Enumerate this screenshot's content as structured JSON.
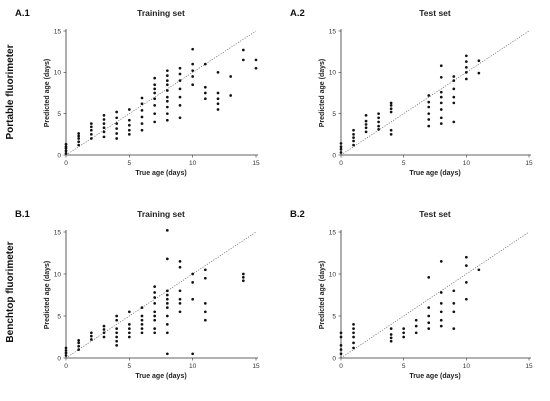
{
  "row_labels": [
    "Portable fluorimeter",
    "Benchtop fluorimeter"
  ],
  "chart_data": [
    {
      "type": "scatter",
      "panel_label": "A.1",
      "title": "Training set",
      "xlabel": "True age (days)",
      "ylabel": "Predicted age (days)",
      "xlim": [
        0,
        15
      ],
      "ylim": [
        0,
        15
      ],
      "xticks": [
        0,
        5,
        10,
        15
      ],
      "yticks": [
        0,
        5,
        10,
        15
      ],
      "reference_line": "y = x",
      "x": [
        0,
        0,
        0,
        0,
        0,
        1,
        1,
        1,
        1,
        1,
        2,
        2,
        2,
        2,
        2,
        3,
        3,
        3,
        3,
        3,
        3,
        4,
        4,
        4,
        4,
        4,
        4,
        5,
        5,
        5,
        5,
        5,
        6,
        6,
        6,
        6,
        6,
        6,
        7,
        7,
        7,
        7,
        7,
        7,
        7,
        7,
        8,
        8,
        8,
        8,
        8,
        8,
        8,
        8,
        8,
        8,
        9,
        9,
        9,
        9,
        9,
        9,
        9,
        10,
        10,
        10,
        10,
        10,
        11,
        11,
        11,
        11,
        12,
        12,
        12,
        12,
        12,
        13,
        13,
        14,
        14,
        15,
        15
      ],
      "y": [
        0.2,
        0.5,
        0.8,
        1.0,
        1.3,
        1.2,
        1.6,
        2.0,
        2.3,
        2.6,
        2.0,
        2.5,
        3.0,
        3.4,
        3.8,
        2.2,
        2.8,
        3.3,
        3.8,
        4.3,
        4.8,
        2.0,
        2.6,
        3.2,
        3.8,
        4.5,
        5.2,
        2.5,
        3.0,
        3.6,
        4.2,
        5.5,
        3.0,
        3.8,
        4.6,
        5.4,
        6.2,
        6.9,
        4.0,
        5.0,
        6.0,
        6.8,
        7.5,
        8.0,
        8.5,
        9.3,
        4.2,
        5.0,
        5.8,
        6.5,
        7.0,
        7.8,
        8.5,
        9.0,
        9.6,
        10.2,
        4.5,
        6.0,
        7.0,
        8.0,
        9.0,
        9.8,
        10.5,
        8.5,
        9.5,
        10.2,
        11.0,
        12.8,
        6.8,
        7.5,
        8.2,
        11.0,
        5.5,
        6.2,
        6.8,
        7.5,
        10.0,
        7.2,
        9.5,
        11.5,
        12.7,
        10.5,
        11.5
      ]
    },
    {
      "type": "scatter",
      "panel_label": "A.2",
      "title": "Test set",
      "xlabel": "True age (days)",
      "ylabel": "Predicted age (days)",
      "xlim": [
        0,
        15
      ],
      "ylim": [
        0,
        15
      ],
      "xticks": [
        0,
        5,
        10,
        15
      ],
      "yticks": [
        0,
        5,
        10,
        15
      ],
      "reference_line": "y = x",
      "x": [
        0,
        0,
        0,
        0,
        1,
        1,
        1,
        1,
        1,
        2,
        2,
        2,
        2,
        2,
        3,
        3,
        3,
        3,
        3,
        4,
        4,
        4,
        4,
        4,
        4,
        7,
        7,
        7,
        7,
        7,
        7,
        8,
        8,
        8,
        8,
        8,
        8,
        8,
        8,
        9,
        9,
        9,
        9,
        9,
        9,
        10,
        10,
        10,
        10,
        10,
        11,
        11
      ],
      "y": [
        0.3,
        0.7,
        1.0,
        1.4,
        1.2,
        1.7,
        2.1,
        2.5,
        3.0,
        2.8,
        3.3,
        3.7,
        4.1,
        4.8,
        3.1,
        3.5,
        4.0,
        4.5,
        5.0,
        2.5,
        3.0,
        5.2,
        5.6,
        6.0,
        6.3,
        3.5,
        4.3,
        5.0,
        5.8,
        6.4,
        7.2,
        3.8,
        4.5,
        5.5,
        6.3,
        7.0,
        7.6,
        9.4,
        10.8,
        4.0,
        6.3,
        7.0,
        8.0,
        9.0,
        9.5,
        9.2,
        10.0,
        10.6,
        11.3,
        12.0,
        9.9,
        11.4
      ]
    },
    {
      "type": "scatter",
      "panel_label": "B.1",
      "title": "Training set",
      "xlabel": "True age (days)",
      "ylabel": "Predicted age (days)",
      "xlim": [
        0,
        15
      ],
      "ylim": [
        0,
        15
      ],
      "xticks": [
        0,
        5,
        10,
        15
      ],
      "yticks": [
        0,
        5,
        10,
        15
      ],
      "reference_line": "y = x",
      "x": [
        0,
        0,
        0,
        0,
        1,
        1,
        1,
        1,
        2,
        2,
        2,
        3,
        3,
        3,
        3,
        4,
        4,
        4,
        4,
        4,
        4,
        4,
        5,
        5,
        5,
        5,
        5,
        6,
        6,
        6,
        6,
        6,
        6,
        7,
        7,
        7,
        7,
        7,
        7,
        7,
        7,
        7,
        8,
        8,
        8,
        8,
        8,
        8,
        8,
        8,
        8,
        8,
        8,
        9,
        9,
        9,
        9,
        9,
        9,
        10,
        10,
        10,
        10,
        11,
        11,
        11,
        11,
        11,
        14,
        14,
        14
      ],
      "y": [
        0.3,
        0.6,
        0.9,
        1.2,
        1.0,
        1.4,
        1.8,
        2.1,
        2.2,
        2.6,
        3.0,
        2.5,
        3.0,
        3.4,
        3.8,
        1.5,
        2.0,
        2.5,
        3.0,
        3.5,
        4.5,
        5.0,
        2.5,
        3.0,
        3.5,
        4.0,
        5.5,
        3.0,
        3.5,
        4.0,
        4.5,
        5.0,
        6.0,
        3.0,
        3.5,
        4.5,
        5.0,
        5.5,
        6.5,
        7.2,
        7.8,
        8.5,
        0.5,
        3.0,
        4.0,
        5.0,
        6.0,
        6.5,
        7.0,
        7.5,
        8.0,
        11.8,
        15.2,
        5.5,
        6.5,
        7.0,
        8.0,
        10.8,
        11.5,
        0.5,
        7.0,
        9.0,
        10.0,
        4.5,
        5.5,
        6.5,
        9.5,
        10.5,
        9.2,
        9.6,
        10.0
      ]
    },
    {
      "type": "scatter",
      "panel_label": "B.2",
      "title": "Test set",
      "xlabel": "True age (days)",
      "ylabel": "Predicted age (days)",
      "xlim": [
        0,
        15
      ],
      "ylim": [
        0,
        15
      ],
      "xticks": [
        0,
        5,
        10,
        15
      ],
      "yticks": [
        0,
        5,
        10,
        15
      ],
      "reference_line": "y = x",
      "x": [
        0,
        0,
        0,
        0,
        0,
        1,
        1,
        1,
        1,
        1,
        1,
        4,
        4,
        4,
        4,
        5,
        5,
        5,
        6,
        6,
        6,
        7,
        7,
        7,
        7,
        7,
        8,
        8,
        8,
        8,
        8,
        8,
        9,
        9,
        9,
        9,
        10,
        10,
        10,
        10,
        11
      ],
      "y": [
        0.5,
        1.0,
        1.5,
        2.5,
        3.0,
        1.2,
        1.8,
        2.5,
        3.0,
        3.5,
        4.0,
        2.0,
        2.4,
        2.8,
        3.5,
        2.5,
        3.0,
        3.5,
        3.0,
        3.8,
        4.5,
        3.5,
        4.2,
        5.0,
        6.0,
        9.6,
        3.8,
        4.5,
        5.5,
        6.5,
        7.8,
        11.5,
        3.5,
        5.5,
        6.5,
        8.0,
        7.0,
        9.0,
        11.0,
        12.0,
        10.5
      ]
    }
  ]
}
